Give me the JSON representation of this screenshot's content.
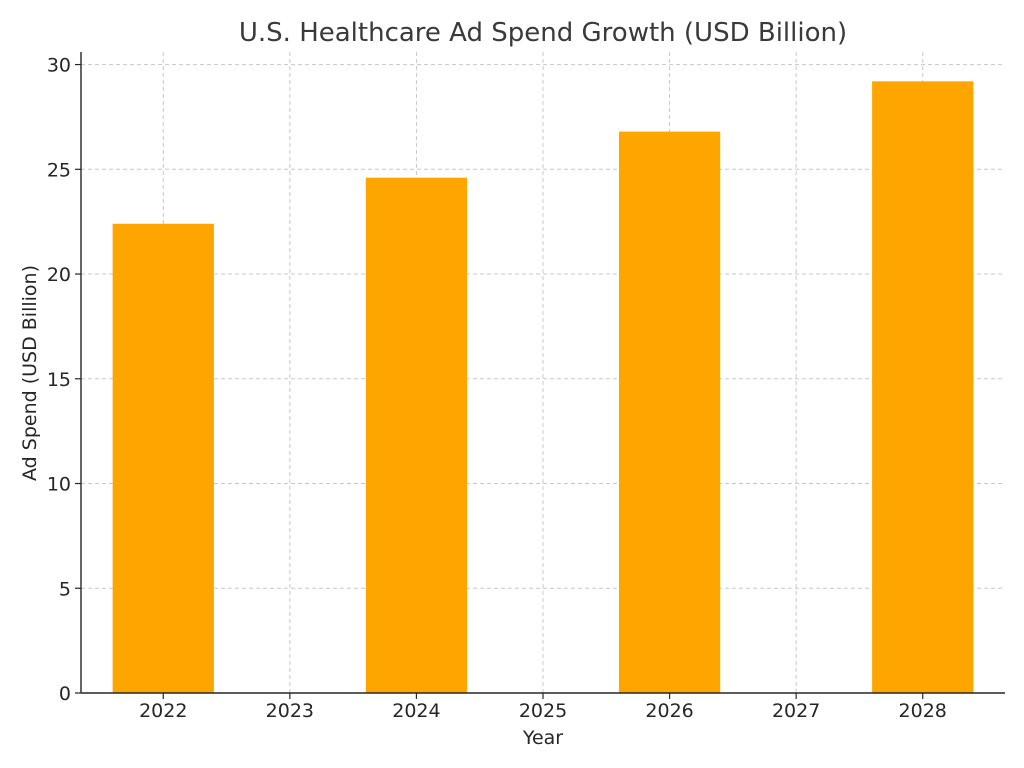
{
  "chart_data": {
    "type": "bar",
    "title": "U.S. Healthcare Ad Spend Growth (USD Billion)",
    "xlabel": "Year",
    "ylabel": "Ad Spend (USD Billion)",
    "x_ticks": [
      "2022",
      "2023",
      "2024",
      "2025",
      "2026",
      "2027",
      "2028"
    ],
    "x_range": [
      2021.35,
      2028.65
    ],
    "y_ticks": [
      0,
      5,
      10,
      15,
      20,
      25,
      30
    ],
    "ylim": [
      0,
      30.6
    ],
    "bar_width_years": 0.8,
    "bars": [
      {
        "x": 2022,
        "value": 22.4
      },
      {
        "x": 2024,
        "value": 24.6
      },
      {
        "x": 2026,
        "value": 26.8
      },
      {
        "x": 2028,
        "value": 29.2
      }
    ],
    "bar_color": "#FFA500",
    "grid": true
  }
}
